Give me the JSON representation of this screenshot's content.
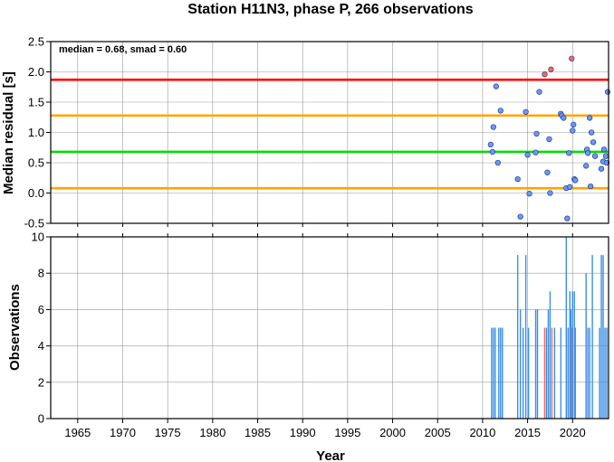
{
  "chart_data": [
    {
      "type": "scatter",
      "title": "Station H11N3, phase P, 266 observations",
      "xlabel": "",
      "ylabel": "Median residual [s]",
      "xlim": [
        1962,
        2024
      ],
      "ylim": [
        -0.5,
        2.5
      ],
      "y_ticks": [
        "-0.5",
        "0.0",
        "0.5",
        "1.0",
        "1.5",
        "2.0",
        "2.5"
      ],
      "grid": true,
      "annotation": "median = 0.68, smad = 0.60",
      "reference_lines": [
        {
          "y": 1.87,
          "color": "#ff0000"
        },
        {
          "y": 1.28,
          "color": "#ffa500"
        },
        {
          "y": 0.68,
          "color": "#00dd00"
        },
        {
          "y": 0.08,
          "color": "#ffa500"
        }
      ],
      "series": [
        {
          "color": "#6699ff",
          "points": [
            [
              2010.9,
              0.8
            ],
            [
              2011.1,
              0.68
            ],
            [
              2011.2,
              1.09
            ],
            [
              2011.5,
              1.76
            ],
            [
              2011.7,
              0.5
            ],
            [
              2012.0,
              1.36
            ],
            [
              2013.9,
              0.23
            ],
            [
              2014.2,
              -0.39
            ],
            [
              2014.8,
              1.34
            ],
            [
              2015.0,
              0.63
            ],
            [
              2015.2,
              -0.01
            ],
            [
              2015.9,
              0.67
            ],
            [
              2016.0,
              0.98
            ],
            [
              2016.3,
              1.67
            ],
            [
              2017.2,
              0.34
            ],
            [
              2017.4,
              0.89
            ],
            [
              2017.5,
              0.0
            ],
            [
              2018.7,
              1.31
            ],
            [
              2018.8,
              1.28
            ],
            [
              2019.0,
              1.24
            ],
            [
              2019.3,
              0.08
            ],
            [
              2019.4,
              -0.42
            ],
            [
              2019.6,
              0.66
            ],
            [
              2019.7,
              0.1
            ],
            [
              2020.0,
              1.03
            ],
            [
              2020.1,
              1.13
            ],
            [
              2020.2,
              0.23
            ],
            [
              2020.3,
              0.21
            ],
            [
              2021.5,
              0.45
            ],
            [
              2021.6,
              0.72
            ],
            [
              2021.7,
              0.66
            ],
            [
              2021.9,
              1.24
            ],
            [
              2022.0,
              0.11
            ],
            [
              2022.1,
              1.0
            ],
            [
              2022.3,
              0.84
            ],
            [
              2022.5,
              0.61
            ],
            [
              2023.2,
              0.4
            ],
            [
              2023.4,
              0.52
            ],
            [
              2023.5,
              0.72
            ],
            [
              2023.7,
              0.61
            ],
            [
              2023.8,
              0.5
            ],
            [
              2023.9,
              1.67
            ]
          ]
        },
        {
          "color": "#ff6655",
          "points": [
            [
              2016.9,
              1.96
            ],
            [
              2017.6,
              2.04
            ],
            [
              2019.9,
              2.22
            ]
          ]
        }
      ]
    },
    {
      "type": "bar",
      "xlabel": "Year",
      "ylabel": "Observations",
      "xlim": [
        1962,
        2024
      ],
      "ylim": [
        0,
        10
      ],
      "x_ticks": [
        "1965",
        "1970",
        "1975",
        "1980",
        "1985",
        "1990",
        "1995",
        "2000",
        "2005",
        "2010",
        "2015",
        "2020"
      ],
      "y_ticks": [
        "0",
        "2",
        "4",
        "6",
        "8",
        "10"
      ],
      "grid": true,
      "bars": [
        {
          "x": 2011.0,
          "value": 5
        },
        {
          "x": 2011.2,
          "value": 5
        },
        {
          "x": 2011.4,
          "value": 5
        },
        {
          "x": 2011.8,
          "value": 5
        },
        {
          "x": 2012.0,
          "value": 5
        },
        {
          "x": 2012.2,
          "value": 5
        },
        {
          "x": 2013.9,
          "value": 9
        },
        {
          "x": 2014.2,
          "value": 6
        },
        {
          "x": 2014.5,
          "value": 5
        },
        {
          "x": 2014.8,
          "value": 9
        },
        {
          "x": 2015.1,
          "value": 5
        },
        {
          "x": 2015.9,
          "value": 6
        },
        {
          "x": 2016.1,
          "value": 6
        },
        {
          "x": 2016.9,
          "value": 5,
          "color": "#ff6655"
        },
        {
          "x": 2017.1,
          "value": 5
        },
        {
          "x": 2017.3,
          "value": 6
        },
        {
          "x": 2017.5,
          "value": 7
        },
        {
          "x": 2017.7,
          "value": 5,
          "color": "#ff6655"
        },
        {
          "x": 2018.0,
          "value": 5
        },
        {
          "x": 2018.7,
          "value": 5
        },
        {
          "x": 2019.3,
          "value": 10
        },
        {
          "x": 2019.5,
          "value": 5
        },
        {
          "x": 2019.7,
          "value": 7
        },
        {
          "x": 2019.8,
          "value": 6
        },
        {
          "x": 2019.9,
          "value": 5,
          "color": "#ff6655"
        },
        {
          "x": 2020.0,
          "value": 7
        },
        {
          "x": 2020.2,
          "value": 7
        },
        {
          "x": 2020.3,
          "value": 5
        },
        {
          "x": 2021.5,
          "value": 8
        },
        {
          "x": 2021.7,
          "value": 5
        },
        {
          "x": 2021.9,
          "value": 5
        },
        {
          "x": 2022.2,
          "value": 9
        },
        {
          "x": 2023.0,
          "value": 5
        },
        {
          "x": 2023.2,
          "value": 9
        },
        {
          "x": 2023.4,
          "value": 9
        },
        {
          "x": 2023.6,
          "value": 5
        },
        {
          "x": 2023.8,
          "value": 5
        }
      ]
    }
  ]
}
